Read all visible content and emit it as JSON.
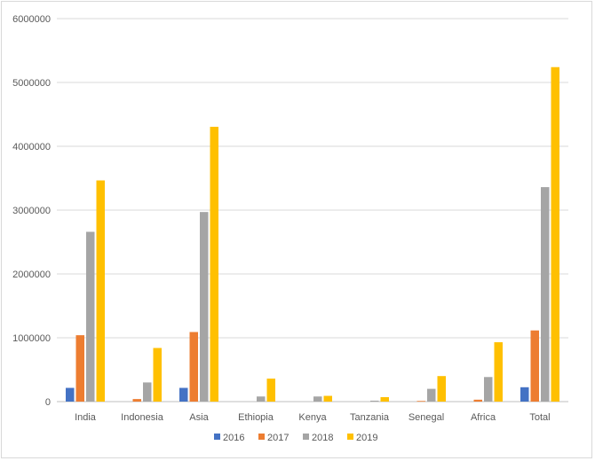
{
  "chart_data": {
    "type": "bar",
    "title": "",
    "xlabel": "",
    "ylabel": "",
    "categories": [
      "India",
      "Indonesia",
      "Asia",
      "Ethiopia",
      "Kenya",
      "Tanzania",
      "Senegal",
      "Africa",
      "Total"
    ],
    "series": [
      {
        "name": "2016",
        "color": "#4472C4",
        "values": [
          215000,
          0,
          215000,
          0,
          0,
          0,
          0,
          0,
          225000
        ]
      },
      {
        "name": "2017",
        "color": "#ED7D31",
        "values": [
          1040000,
          40000,
          1090000,
          0,
          0,
          0,
          10000,
          30000,
          1115000
        ]
      },
      {
        "name": "2018",
        "color": "#A5A5A5",
        "values": [
          2660000,
          300000,
          2970000,
          80000,
          80000,
          15000,
          200000,
          385000,
          3360000
        ]
      },
      {
        "name": "2019",
        "color": "#FFC000",
        "values": [
          3465000,
          840000,
          4305000,
          360000,
          90000,
          70000,
          400000,
          930000,
          5240000
        ]
      }
    ],
    "ylim": [
      0,
      6000000
    ],
    "yticks": [
      "0",
      "1000000",
      "2000000",
      "3000000",
      "4000000",
      "5000000",
      "6000000"
    ],
    "grid": true,
    "legend_position": "bottom"
  }
}
